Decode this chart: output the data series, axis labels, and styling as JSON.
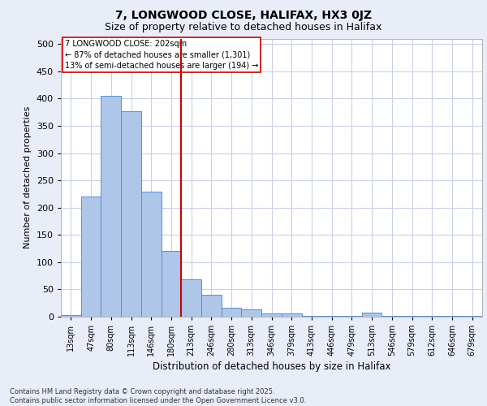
{
  "title_line1": "7, LONGWOOD CLOSE, HALIFAX, HX3 0JZ",
  "title_line2": "Size of property relative to detached houses in Halifax",
  "xlabel": "Distribution of detached houses by size in Halifax",
  "ylabel": "Number of detached properties",
  "categories": [
    "13sqm",
    "47sqm",
    "80sqm",
    "113sqm",
    "146sqm",
    "180sqm",
    "213sqm",
    "246sqm",
    "280sqm",
    "313sqm",
    "346sqm",
    "379sqm",
    "413sqm",
    "446sqm",
    "479sqm",
    "513sqm",
    "546sqm",
    "579sqm",
    "612sqm",
    "646sqm",
    "679sqm"
  ],
  "values": [
    3,
    220,
    405,
    377,
    230,
    120,
    68,
    40,
    17,
    14,
    6,
    6,
    1,
    1,
    1,
    7,
    1,
    1,
    1,
    1,
    2
  ],
  "bar_color": "#aec6e8",
  "bar_edge_color": "#5b8fc9",
  "vline_x": 6.0,
  "vline_color": "#cc0000",
  "annotation_text": "7 LONGWOOD CLOSE: 202sqm\n← 87% of detached houses are smaller (1,301)\n13% of semi-detached houses are larger (194) →",
  "annotation_box_color": "#ffffff",
  "annotation_box_edge": "#cc0000",
  "ylim": [
    0,
    510
  ],
  "yticks": [
    0,
    50,
    100,
    150,
    200,
    250,
    300,
    350,
    400,
    450,
    500
  ],
  "footer_text": "Contains HM Land Registry data © Crown copyright and database right 2025.\nContains public sector information licensed under the Open Government Licence v3.0.",
  "bg_color": "#e8edf8",
  "plot_bg_color": "#ffffff",
  "grid_color": "#c8d0e8"
}
